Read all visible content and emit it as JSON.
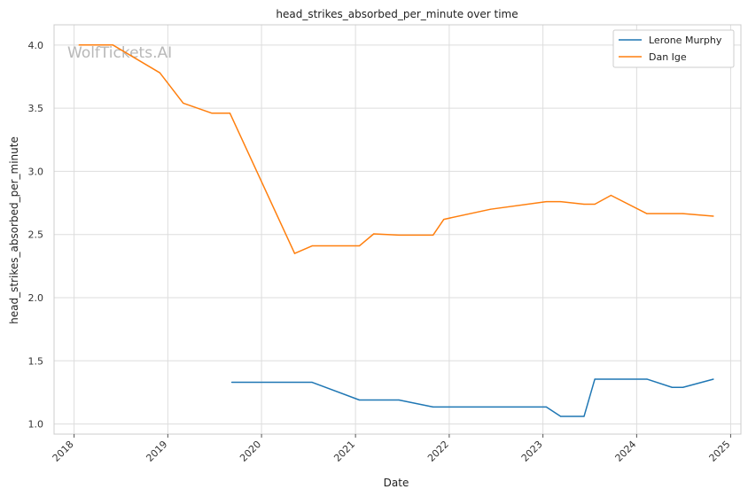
{
  "chart_data": {
    "type": "line",
    "title": "head_strikes_absorbed_per_minute over time",
    "xlabel": "Date",
    "ylabel": "head_strikes_absorbed_per_minute",
    "watermark": "WolfTickets.AI",
    "xlim": [
      "2017-10-15",
      "2025-02-10"
    ],
    "ylim": [
      0.92,
      4.16
    ],
    "x_ticks": [
      "2018",
      "2019",
      "2020",
      "2021",
      "2022",
      "2023",
      "2024",
      "2025"
    ],
    "y_ticks": [
      "1.0",
      "1.5",
      "2.0",
      "2.5",
      "3.0",
      "3.5",
      "4.0"
    ],
    "grid": true,
    "legend_position": "top-right",
    "series": [
      {
        "name": "Lerone Murphy",
        "color": "#1f77b4",
        "points": [
          {
            "x": "2019-09-07",
            "y": 1.33
          },
          {
            "x": "2020-07-16",
            "y": 1.33
          },
          {
            "x": "2021-01-16",
            "y": 1.19
          },
          {
            "x": "2021-06-19",
            "y": 1.19
          },
          {
            "x": "2021-10-30",
            "y": 1.135
          },
          {
            "x": "2023-01-14",
            "y": 1.135
          },
          {
            "x": "2023-03-11",
            "y": 1.06
          },
          {
            "x": "2023-06-10",
            "y": 1.06
          },
          {
            "x": "2023-07-22",
            "y": 1.355
          },
          {
            "x": "2024-02-10",
            "y": 1.355
          },
          {
            "x": "2024-05-18",
            "y": 1.29
          },
          {
            "x": "2024-06-29",
            "y": 1.29
          },
          {
            "x": "2024-10-26",
            "y": 1.355
          }
        ]
      },
      {
        "name": "Dan Ige",
        "color": "#ff7f0e",
        "points": [
          {
            "x": "2018-01-20",
            "y": 4.0
          },
          {
            "x": "2018-06-01",
            "y": 4.0
          },
          {
            "x": "2018-12-01",
            "y": 3.78
          },
          {
            "x": "2019-03-02",
            "y": 3.54
          },
          {
            "x": "2019-06-22",
            "y": 3.46
          },
          {
            "x": "2019-08-31",
            "y": 3.46
          },
          {
            "x": "2020-05-09",
            "y": 2.35
          },
          {
            "x": "2020-07-16",
            "y": 2.41
          },
          {
            "x": "2021-01-16",
            "y": 2.41
          },
          {
            "x": "2021-03-13",
            "y": 2.505
          },
          {
            "x": "2021-06-19",
            "y": 2.495
          },
          {
            "x": "2021-10-30",
            "y": 2.495
          },
          {
            "x": "2021-12-11",
            "y": 2.62
          },
          {
            "x": "2022-06-11",
            "y": 2.7
          },
          {
            "x": "2023-01-14",
            "y": 2.76
          },
          {
            "x": "2023-03-11",
            "y": 2.76
          },
          {
            "x": "2023-06-10",
            "y": 2.74
          },
          {
            "x": "2023-07-22",
            "y": 2.74
          },
          {
            "x": "2023-09-23",
            "y": 2.81
          },
          {
            "x": "2024-02-10",
            "y": 2.665
          },
          {
            "x": "2024-06-29",
            "y": 2.665
          },
          {
            "x": "2024-10-26",
            "y": 2.645
          }
        ]
      }
    ]
  }
}
